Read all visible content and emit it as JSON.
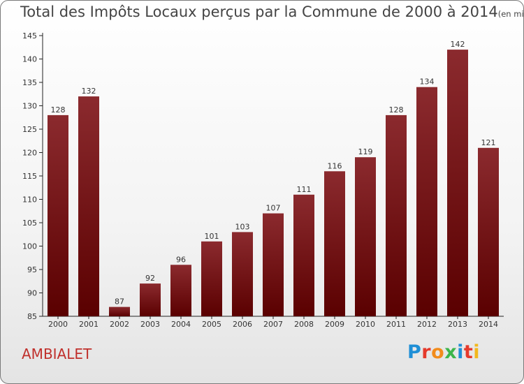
{
  "chart_data": {
    "type": "bar",
    "title": "Total des Impôts Locaux perçus par la Commune de 2000 à 2014",
    "unit_label": "(en milliers d'€)",
    "categories": [
      "2000",
      "2001",
      "2002",
      "2003",
      "2004",
      "2005",
      "2006",
      "2007",
      "2008",
      "2009",
      "2010",
      "2011",
      "2012",
      "2013",
      "2014"
    ],
    "values": [
      128,
      132,
      87,
      92,
      96,
      101,
      103,
      107,
      111,
      116,
      119,
      128,
      134,
      142,
      121
    ],
    "ylim": [
      85,
      145
    ],
    "yticks": [
      85,
      90,
      95,
      100,
      105,
      110,
      115,
      120,
      125,
      130,
      135,
      140,
      145
    ],
    "grid": false,
    "bar_color_top": "#8b2a2e",
    "bar_color_bottom": "#5a0000"
  },
  "commune": "AMBIALET",
  "logo": {
    "text": "Proxiti",
    "letter_colors": [
      "#1f8fd6",
      "#e53a2c",
      "#f28c1c",
      "#3cb54a",
      "#1f8fd6",
      "#e53a2c",
      "#f2b81c"
    ]
  }
}
